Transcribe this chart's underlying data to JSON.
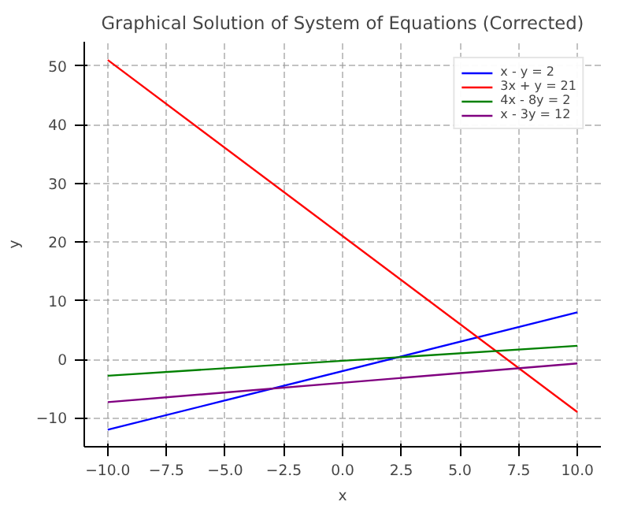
{
  "chart_data": {
    "type": "line",
    "title": "Graphical Solution of System of Equations (Corrected)",
    "xlabel": "x",
    "ylabel": "y",
    "x": [
      -10,
      10
    ],
    "series": [
      {
        "name": "x - y = 2",
        "color": "#0000ff",
        "values": [
          -12,
          8
        ]
      },
      {
        "name": "3x + y = 21",
        "color": "#ff0000",
        "values": [
          51,
          -9
        ]
      },
      {
        "name": "4x - 8y = 2",
        "color": "#008000",
        "values": [
          -2.8,
          2.3
        ]
      },
      {
        "name": "x - 3y = 12",
        "color": "#800080",
        "values": [
          -7.3,
          -0.7
        ]
      }
    ],
    "xlim": [
      -11,
      11
    ],
    "ylim": [
      -14.9,
      54.1
    ],
    "xticks": [
      {
        "value": -10,
        "label": "−10.0"
      },
      {
        "value": -7.5,
        "label": "−7.5"
      },
      {
        "value": -5,
        "label": "−5.0"
      },
      {
        "value": -2.5,
        "label": "−2.5"
      },
      {
        "value": 0,
        "label": "0.0"
      },
      {
        "value": 2.5,
        "label": "2.5"
      },
      {
        "value": 5,
        "label": "5.0"
      },
      {
        "value": 7.5,
        "label": "7.5"
      },
      {
        "value": 10,
        "label": "10.0"
      }
    ],
    "yticks": [
      {
        "value": -10,
        "label": "−10"
      },
      0,
      10,
      20,
      30,
      40,
      50
    ],
    "grid": true,
    "legend": "top right",
    "line_style": "solid"
  }
}
